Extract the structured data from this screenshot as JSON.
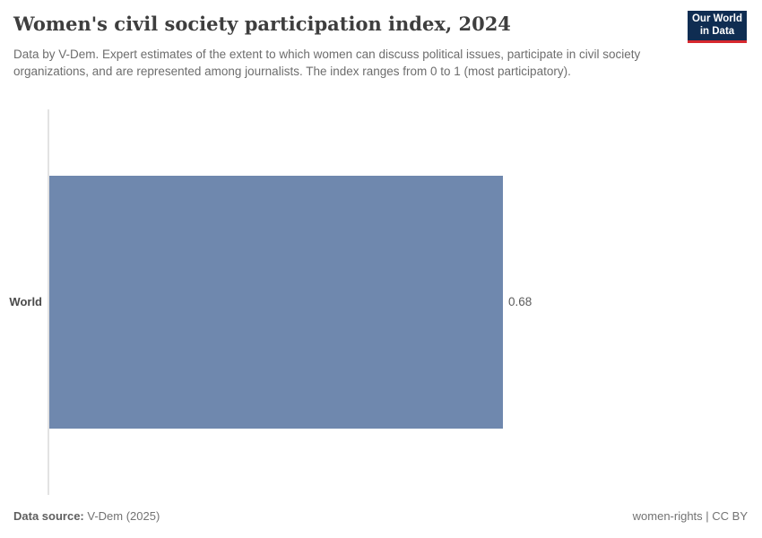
{
  "header": {
    "title": "Women's civil society participation index, 2024",
    "subtitle": "Data by V-Dem. Expert estimates of the extent to which women can discuss political issues, participate in civil society organizations, and are represented among journalists. The index ranges from 0 to 1 (most participatory).",
    "logo": {
      "line1": "Our World",
      "line2": "in Data"
    }
  },
  "chart_data": {
    "type": "bar",
    "orientation": "horizontal",
    "title": "Women's civil society participation index, 2024",
    "categories": [
      "World"
    ],
    "values": [
      0.68
    ],
    "value_labels": [
      "0.68"
    ],
    "axis_range": [
      0,
      0.68
    ],
    "xlabel": "",
    "ylabel": "",
    "grid": false,
    "legend": false
  },
  "footer": {
    "source_label": "Data source:",
    "source_value": "V-Dem (2025)",
    "note": "women-rights | CC BY"
  },
  "colors": {
    "bar": "#6f88ae",
    "logo_bg": "#0f2d52",
    "logo_accent": "#d7282f",
    "axis_line": "#e3e3e3",
    "title_text": "#3e3e3e",
    "subtitle_text": "#6d6d6d",
    "footer_text": "#737373"
  }
}
